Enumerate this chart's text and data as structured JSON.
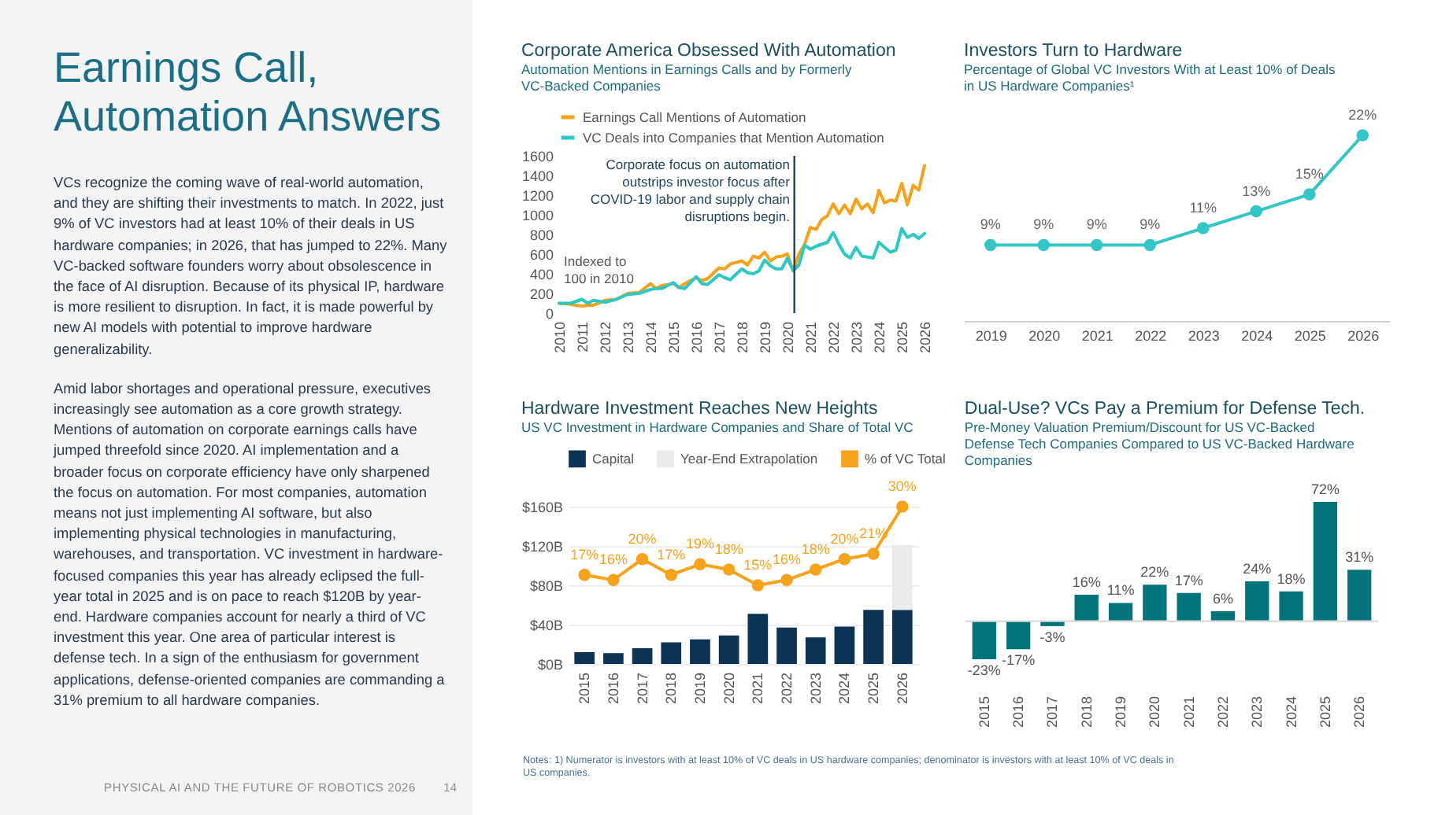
{
  "chart_data": [
    {
      "type": "other",
      "title": "Earnings Call, Automation Answers",
      "annotations": [
        "VCs recognize the coming wave of real-world automation, and they are shifting their investments to match. In 2022, just 9% of VC investors had at least 10% of their deals in US hardware companies; in 2026, that has jumped to 22%. Many VC-backed software founders worry about obsolescence in the face of AI disruption. Because of its physical IP, hardware is more resilient to disruption. In fact, it is made powerful by new AI models with potential to improve hardware generalizability.",
        "Amid labor shortages and operational pressure, executives increasingly see automation as a core growth strategy. Mentions of automation on corporate earnings calls have jumped threefold since 2020. AI implementation and a broader focus on corporate efficiency have only sharpened the focus on automation. For most companies, automation means not just implementing AI software, but also implementing physical technologies in manufacturing, warehouses, and transportation. VC investment in hardware-focused companies this year has already eclipsed the full-year total in 2025 and is on pace to reach $120B by year-end. Hardware companies account for nearly a third of VC investment this year. One area of particular interest is defense tech. In a sign of the enthusiasm for government applications, defense-oriented companies are commanding a 31% premium to all hardware companies.",
        "Notes: 1) Numerator is investors with at least 10% of VC deals in US hardware companies; denominator is investors with at least 10% of VC deals in US companies.",
        "PHYSICAL AI AND THE FUTURE OF ROBOTICS 2026",
        "14"
      ]
    },
    {
      "type": "line",
      "title": "Corporate America Obsessed With Automation",
      "subtitle": "Automation Mentions in Earnings Calls and by Formerly VC-Backed Companies",
      "x": [
        2010,
        2010.5,
        2011,
        2011.25,
        2011.5,
        2012,
        2012.5,
        2013,
        2013.5,
        2014,
        2014.25,
        2014.5,
        2015,
        2015.25,
        2015.5,
        2016,
        2016.25,
        2016.5,
        2017,
        2017.25,
        2017.5,
        2018,
        2018.25,
        2018.5,
        2018.75,
        2019,
        2019.25,
        2019.5,
        2019.75,
        2020,
        2020.25,
        2020.5,
        2020.75,
        2021,
        2021.25,
        2021.5,
        2021.75,
        2022,
        2022.25,
        2022.5,
        2022.75,
        2023,
        2023.25,
        2023.5,
        2023.75,
        2024,
        2024.25,
        2024.5,
        2024.75,
        2025,
        2025.25,
        2025.5,
        2025.75,
        2026
      ],
      "series": [
        {
          "name": "Earnings Call Mentions of Automation",
          "color": "#f7a21b",
          "values": [
            100,
            90,
            70,
            80,
            80,
            130,
            140,
            200,
            210,
            300,
            250,
            280,
            300,
            260,
            300,
            360,
            330,
            350,
            460,
            450,
            500,
            530,
            490,
            580,
            560,
            620,
            530,
            570,
            580,
            600,
            430,
            600,
            700,
            870,
            850,
            950,
            990,
            1110,
            1010,
            1100,
            1010,
            1160,
            1060,
            1110,
            1020,
            1250,
            1120,
            1150,
            1140,
            1320,
            1100,
            1300,
            1250,
            1500
          ]
        },
        {
          "name": "VC Deals into Companies that Mention Automation",
          "color": "#2ec8c4",
          "values": [
            100,
            100,
            140,
            100,
            130,
            110,
            140,
            190,
            200,
            240,
            250,
            250,
            310,
            260,
            250,
            370,
            300,
            290,
            390,
            360,
            340,
            450,
            410,
            400,
            430,
            540,
            480,
            450,
            450,
            560,
            430,
            490,
            690,
            650,
            680,
            700,
            720,
            820,
            700,
            600,
            560,
            670,
            580,
            570,
            560,
            720,
            670,
            620,
            640,
            860,
            770,
            800,
            760,
            810
          ]
        }
      ],
      "xlim": [
        2010,
        2026
      ],
      "xticks": [
        2010,
        2011,
        2012,
        2013,
        2014,
        2015,
        2016,
        2017,
        2018,
        2019,
        2020,
        2021,
        2022,
        2023,
        2024,
        2025,
        2026
      ],
      "ylim": [
        0,
        1600
      ],
      "yticks": [
        0,
        200,
        400,
        600,
        800,
        1000,
        1200,
        1400,
        1600
      ],
      "legend": "top",
      "ref_lines": [
        {
          "axis": "x",
          "value": 2020.3,
          "color": "#1d3f5a"
        }
      ],
      "annotations": [
        {
          "text": "Corporate focus on automation outstrips investor focus after COVID-19 labor and supply chain disruptions begin.",
          "x": 2020.1,
          "y": 1580
        },
        "Indexed to 100 in 2010"
      ]
    },
    {
      "type": "line",
      "title": "Investors Turn to Hardware",
      "subtitle": "Percentage of Global VC Investors With at Least 10% of Deals in US Hardware Companies¹",
      "categories": [
        "2019",
        "2020",
        "2021",
        "2022",
        "2023",
        "2024",
        "2025",
        "2026"
      ],
      "series": [
        {
          "color": "#33c6c6",
          "values": [
            9,
            9,
            9,
            9,
            11,
            13,
            15,
            22
          ],
          "value_labels": [
            "9%",
            "9%",
            "9%",
            "9%",
            "11%",
            "13%",
            "15%",
            "22%"
          ]
        }
      ],
      "marker": "circle",
      "tick_labels": "x"
    },
    {
      "type": "bar",
      "title": "Hardware Investment Reaches New Heights",
      "subtitle": "US VC Investment in Hardware Companies and Share of Total VC",
      "categories": [
        "2015",
        "2016",
        "2017",
        "2018",
        "2019",
        "2020",
        "2021",
        "2022",
        "2023",
        "2024",
        "2025",
        "2026"
      ],
      "series": [
        {
          "name": "Capital",
          "color": "#0c3354",
          "values": [
            12,
            11,
            16,
            22,
            25,
            29,
            51,
            37,
            27,
            38,
            55,
            55
          ]
        },
        {
          "name": "Year-End Extrapolation",
          "color": "#ebebeb",
          "values": [
            null,
            null,
            null,
            null,
            null,
            null,
            null,
            null,
            null,
            null,
            null,
            66
          ]
        },
        {
          "name": "% of VC Total",
          "type": "line",
          "axis": "y2",
          "color": "#f7a21b",
          "values": [
            17,
            16,
            20,
            17,
            19,
            18,
            15,
            16,
            18,
            20,
            21,
            30
          ],
          "value_labels": [
            "17%",
            "16%",
            "20%",
            "17%",
            "19%",
            "18%",
            "15%",
            "16%",
            "18%",
            "20%",
            "21%",
            "30%"
          ]
        }
      ],
      "stacked": true,
      "marker": "circle",
      "legend": "top",
      "grid": "y",
      "ylim": [
        0,
        160
      ],
      "yticks": [
        {
          "value": 0,
          "label": "$0B"
        },
        {
          "value": 40,
          "label": "$40B"
        },
        {
          "value": 80,
          "label": "$80B"
        },
        {
          "value": 120,
          "label": "$120B"
        },
        {
          "value": 160,
          "label": "$160B"
        }
      ]
    },
    {
      "type": "bar",
      "title": "Dual-Use? VCs Pay a Premium for Defense Tech.",
      "subtitle": "Pre-Money Valuation Premium/Discount for US VC-Backed Defense Tech Companies Compared to US VC-Backed Hardware Companies",
      "categories": [
        "2015",
        "2016",
        "2017",
        "2018",
        "2019",
        "2020",
        "2021",
        "2022",
        "2023",
        "2024",
        "2025",
        "2026"
      ],
      "series": [
        {
          "color": "#00747a",
          "values": [
            -23,
            -17,
            -3,
            16,
            11,
            22,
            17,
            6,
            24,
            18,
            72,
            31
          ],
          "value_labels": [
            "-23%",
            "-17%",
            "-3%",
            "16%",
            "11%",
            "22%",
            "17%",
            "6%",
            "24%",
            "18%",
            "72%",
            "31%"
          ]
        }
      ],
      "tick_labels": "x"
    }
  ]
}
